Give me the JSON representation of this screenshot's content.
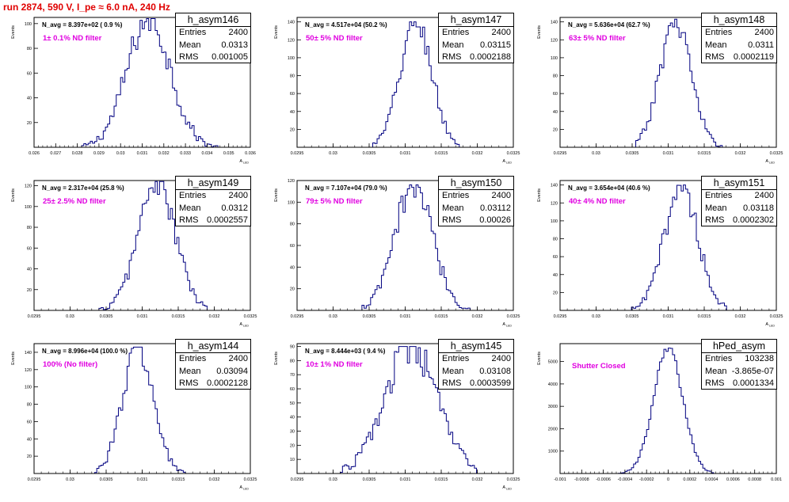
{
  "page": {
    "run_title": "run 2874,   590 V, I_pe ≈ 6.0 nA, 240 Hz"
  },
  "colors": {
    "histogram": "#000080",
    "filter_label": "#e000e0",
    "title": "#e00000"
  },
  "chart_data": [
    {
      "type": "bar",
      "name": "h_asym146",
      "nav": "N_avg = 8.397e+02 ( 0.9 %)",
      "filter": "1± 0.1% ND filter",
      "stats": {
        "entries": "2400",
        "mean": "0.0313",
        "rms": "0.001005"
      },
      "ylabel": "Events",
      "xlabel": "A_LED",
      "xlim": [
        0.026,
        0.036
      ],
      "xticks": [
        "0.026",
        "0.027",
        "0.028",
        "0.029",
        "0.03",
        "0.031",
        "0.032",
        "0.033",
        "0.034",
        "0.035",
        "0.036"
      ],
      "ylim": [
        0,
        105
      ],
      "yticks": [
        20,
        40,
        60,
        80,
        100
      ],
      "dist": {
        "mean": 0.0313,
        "rms": 0.001005,
        "peak": 104,
        "lo": 0.0282,
        "hi": 0.0345,
        "bins": 100
      }
    },
    {
      "type": "bar",
      "name": "h_asym147",
      "nav": "N_avg = 4.517e+04 (50.2 %)",
      "filter": "50± 5% ND filter",
      "stats": {
        "entries": "2400",
        "mean": "0.03115",
        "rms": "0.0002188"
      },
      "ylabel": "Events",
      "xlabel": "A_LED",
      "xlim": [
        0.0295,
        0.0325
      ],
      "xticks": [
        "0.0295",
        "0.03",
        "0.0305",
        "0.031",
        "0.0315",
        "0.032",
        "0.0325"
      ],
      "ylim": [
        0,
        145
      ],
      "yticks": [
        20,
        40,
        60,
        80,
        100,
        120,
        140
      ],
      "dist": {
        "mean": 0.03115,
        "rms": 0.0002188,
        "peak": 140,
        "lo": 0.03055,
        "hi": 0.03175,
        "bins": 100
      }
    },
    {
      "type": "bar",
      "name": "h_asym148",
      "nav": "N_avg = 5.636e+04 (62.7 %)",
      "filter": "63± 5% ND filter",
      "stats": {
        "entries": "2400",
        "mean": "0.0311",
        "rms": "0.0002119"
      },
      "ylabel": "Events",
      "xlabel": "A_LED",
      "xlim": [
        0.0295,
        0.0325
      ],
      "xticks": [
        "0.0295",
        "0.03",
        "0.0305",
        "0.031",
        "0.0315",
        "0.032",
        "0.0325"
      ],
      "ylim": [
        0,
        145
      ],
      "yticks": [
        20,
        40,
        60,
        80,
        100,
        120,
        140
      ],
      "dist": {
        "mean": 0.0311,
        "rms": 0.0002119,
        "peak": 143,
        "lo": 0.03055,
        "hi": 0.03175,
        "bins": 100
      }
    },
    {
      "type": "bar",
      "name": "h_asym149",
      "nav": "N_avg = 2.317e+04 (25.8 %)",
      "filter": "25± 2.5% ND filter",
      "stats": {
        "entries": "2400",
        "mean": "0.0312",
        "rms": "0.0002557"
      },
      "ylabel": "Events",
      "xlabel": "A_LED",
      "xlim": [
        0.0295,
        0.0325
      ],
      "xticks": [
        "0.0295",
        "0.03",
        "0.0305",
        "0.031",
        "0.0315",
        "0.032",
        "0.0325"
      ],
      "ylim": [
        0,
        125
      ],
      "yticks": [
        20,
        40,
        60,
        80,
        100,
        120
      ],
      "dist": {
        "mean": 0.0312,
        "rms": 0.0002557,
        "peak": 124,
        "lo": 0.0304,
        "hi": 0.0319,
        "bins": 100
      }
    },
    {
      "type": "bar",
      "name": "h_asym150",
      "nav": "N_avg = 7.107e+04 (79.0 %)",
      "filter": "79± 5% ND filter",
      "stats": {
        "entries": "2400",
        "mean": "0.03112",
        "rms": "0.00026"
      },
      "ylabel": "Events",
      "xlabel": "A_LED",
      "xlim": [
        0.0295,
        0.0325
      ],
      "xticks": [
        "0.0295",
        "0.03",
        "0.0305",
        "0.031",
        "0.0315",
        "0.032",
        "0.0325"
      ],
      "ylim": [
        0,
        120
      ],
      "yticks": [
        20,
        40,
        60,
        80,
        100,
        120
      ],
      "dist": {
        "mean": 0.03112,
        "rms": 0.00026,
        "peak": 116,
        "lo": 0.0304,
        "hi": 0.0319,
        "bins": 100
      }
    },
    {
      "type": "bar",
      "name": "h_asym151",
      "nav": "N_avg = 3.654e+04 (40.6 %)",
      "filter": "40± 4% ND filter",
      "stats": {
        "entries": "2400",
        "mean": "0.03118",
        "rms": "0.0002302"
      },
      "ylabel": "Events",
      "xlabel": "A_LED",
      "xlim": [
        0.0295,
        0.0325
      ],
      "xticks": [
        "0.0295",
        "0.03",
        "0.0305",
        "0.031",
        "0.0315",
        "0.032",
        "0.0325"
      ],
      "ylim": [
        0,
        145
      ],
      "yticks": [
        20,
        40,
        60,
        80,
        100,
        120,
        140
      ],
      "dist": {
        "mean": 0.03118,
        "rms": 0.0002302,
        "peak": 140,
        "lo": 0.0305,
        "hi": 0.0318,
        "bins": 100
      }
    },
    {
      "type": "bar",
      "name": "h_asym144",
      "nav": "N_avg = 8.996e+04 (100.0 %)",
      "filter": "100% (No filter)",
      "stats": {
        "entries": "2400",
        "mean": "0.03094",
        "rms": "0.0002128"
      },
      "ylabel": "Events",
      "xlabel": "A_LED",
      "xlim": [
        0.0295,
        0.0325
      ],
      "xticks": [
        "0.0295",
        "0.03",
        "0.0305",
        "0.031",
        "0.0315",
        "0.032",
        "0.0325"
      ],
      "ylim": [
        0,
        150
      ],
      "yticks": [
        20,
        40,
        60,
        80,
        100,
        120,
        140
      ],
      "dist": {
        "mean": 0.03094,
        "rms": 0.0002128,
        "peak": 146,
        "lo": 0.03035,
        "hi": 0.0316,
        "bins": 100
      }
    },
    {
      "type": "bar",
      "name": "h_asym145",
      "nav": "N_avg = 8.444e+03 ( 9.4 %)",
      "filter": "10± 1% ND filter",
      "stats": {
        "entries": "2400",
        "mean": "0.03108",
        "rms": "0.0003599"
      },
      "ylabel": "Events",
      "xlabel": "A_LED",
      "xlim": [
        0.0295,
        0.0325
      ],
      "xticks": [
        "0.0295",
        "0.03",
        "0.0305",
        "0.031",
        "0.0315",
        "0.032",
        "0.0325"
      ],
      "ylim": [
        0,
        92
      ],
      "yticks": [
        10,
        20,
        30,
        40,
        50,
        60,
        70,
        80,
        90
      ],
      "dist": {
        "mean": 0.03108,
        "rms": 0.0003599,
        "peak": 90,
        "lo": 0.0301,
        "hi": 0.032,
        "bins": 100
      }
    },
    {
      "type": "bar",
      "name": "hPed_asym",
      "nav": "",
      "filter": "Shutter Closed",
      "stats": {
        "entries": "103238",
        "mean": "-3.865e-07",
        "rms": "0.0001334"
      },
      "ylabel": "Events",
      "xlabel": "",
      "xlim": [
        -0.001,
        0.001
      ],
      "xticks": [
        "-0.001",
        "-0.0008",
        "-0.0006",
        "-0.0004",
        "-0.0002",
        "0",
        "0.0002",
        "0.0004",
        "0.0006",
        "0.0008",
        "0.001"
      ],
      "ylim": [
        0,
        5800
      ],
      "yticks": [
        1000,
        2000,
        3000,
        4000,
        5000
      ],
      "dist": {
        "mean": 0,
        "rms": 0.0001334,
        "peak": 5600,
        "lo": -0.00046,
        "hi": 0.00042,
        "bins": 100
      }
    }
  ]
}
